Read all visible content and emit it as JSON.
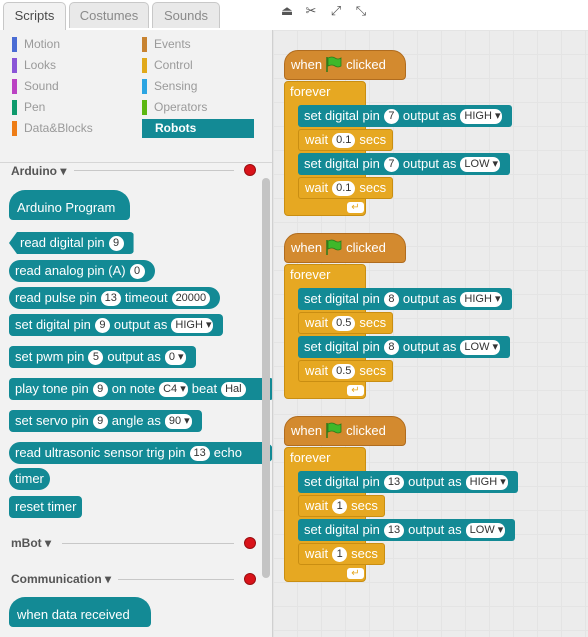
{
  "tabs": {
    "scripts": "Scripts",
    "costumes": "Costumes",
    "sounds": "Sounds"
  },
  "categories": [
    {
      "label": "Motion",
      "color": "#4a6cd4"
    },
    {
      "label": "Events",
      "color": "#c88330"
    },
    {
      "label": "Looks",
      "color": "#8a55d7"
    },
    {
      "label": "Control",
      "color": "#e1a91a"
    },
    {
      "label": "Sound",
      "color": "#bb42c3"
    },
    {
      "label": "Sensing",
      "color": "#2ca5e2"
    },
    {
      "label": "Pen",
      "color": "#0e9a6c"
    },
    {
      "label": "Operators",
      "color": "#5cb712"
    },
    {
      "label": "Data&Blocks",
      "color": "#ee7d16"
    },
    {
      "label": "Robots",
      "color": "#138a95"
    }
  ],
  "sections": {
    "arduino": "Arduino",
    "mbot": "mBot",
    "communication": "Communication"
  },
  "palette": {
    "arduino_program": "Arduino Program",
    "read_digital": {
      "t1": "read digital pin",
      "pin": "9"
    },
    "read_analog": {
      "t1": "read analog pin (A)",
      "pin": "0"
    },
    "read_pulse": {
      "t1": "read pulse pin",
      "pin": "13",
      "t2": "timeout",
      "timeout": "20000"
    },
    "set_digital": {
      "t1": "set digital pin",
      "pin": "9",
      "t2": "output as",
      "val": "HIGH"
    },
    "set_pwm": {
      "t1": "set pwm pin",
      "pin": "5",
      "t2": "output as",
      "val": "0"
    },
    "play_tone": {
      "t1": "play tone pin",
      "pin": "9",
      "t2": "on note",
      "note": "C4",
      "t3": "beat",
      "beat": "Hal"
    },
    "set_servo": {
      "t1": "set servo pin",
      "pin": "9",
      "t2": "angle as",
      "val": "90"
    },
    "ultrasonic": {
      "t1": "read ultrasonic sensor trig pin",
      "pin": "13",
      "t2": "echo"
    },
    "timer": "timer",
    "reset_timer": "reset timer",
    "when_data": "when data received"
  },
  "common": {
    "when": "when",
    "clicked": "clicked",
    "forever": "forever",
    "set_digital": "set digital pin",
    "output_as": "output as",
    "wait": "wait",
    "secs": "secs"
  },
  "scripts": [
    {
      "pin1": "7",
      "val1": "HIGH",
      "wait1": "0.1",
      "pin2": "7",
      "val2": "LOW",
      "wait2": "0.1"
    },
    {
      "pin1": "8",
      "val1": "HIGH",
      "wait1": "0.5",
      "pin2": "8",
      "val2": "LOW",
      "wait2": "0.5"
    },
    {
      "pin1": "13",
      "val1": "HIGH",
      "wait1": "1",
      "pin2": "13",
      "val2": "LOW",
      "wait2": "1"
    }
  ]
}
